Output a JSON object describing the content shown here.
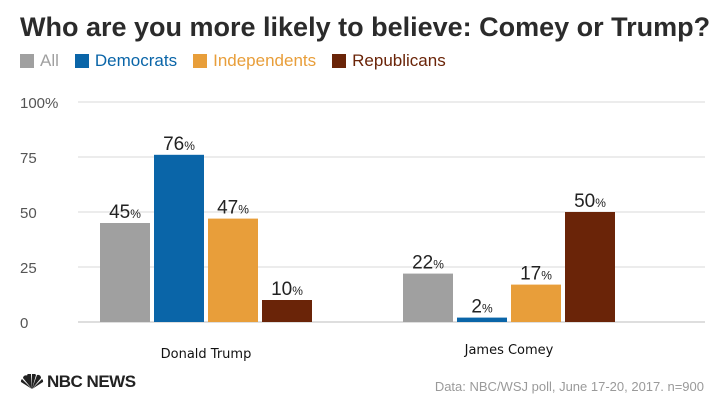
{
  "chart_data": {
    "type": "bar",
    "title": "Who are you more likely to believe: Comey or Trump?",
    "categories": [
      "Donald Trump",
      "James Comey"
    ],
    "series": [
      {
        "name": "All",
        "color": "#a0a0a0",
        "values": [
          45,
          22
        ]
      },
      {
        "name": "Democrats",
        "color": "#0a65a8",
        "values": [
          76,
          2
        ]
      },
      {
        "name": "Independents",
        "color": "#e89e3a",
        "values": [
          47,
          17
        ]
      },
      {
        "name": "Republicans",
        "color": "#6a2408",
        "values": [
          10,
          50
        ]
      }
    ],
    "y_ticks": [
      "0",
      "25",
      "50",
      "75",
      "100%"
    ],
    "ylim": [
      0,
      100
    ],
    "value_suffix": "%",
    "legend_position": "top-left",
    "grid": true
  },
  "footer": {
    "logo_text": "NBC NEWS",
    "logo_icon": "peacock-icon",
    "source": "Data: NBC/WSJ poll, June 17-20, 2017. n=900"
  }
}
